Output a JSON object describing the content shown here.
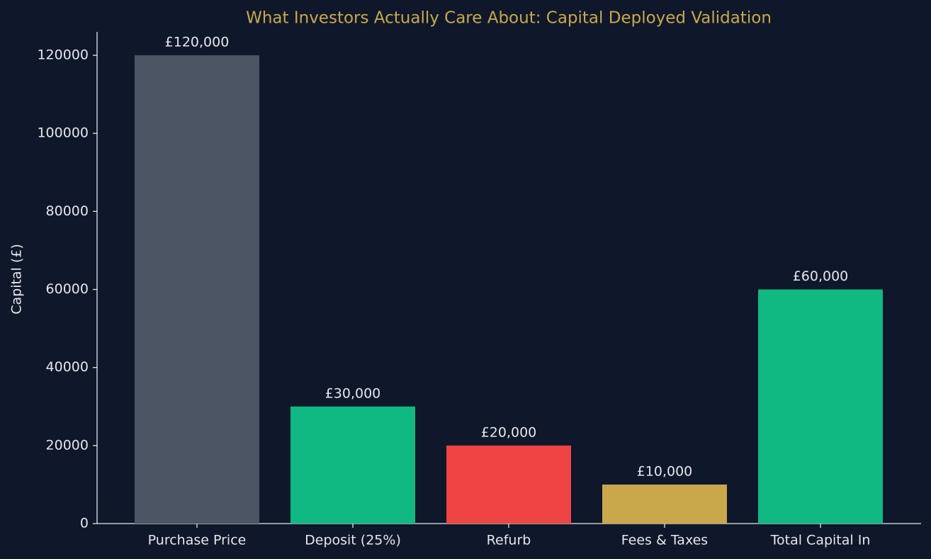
{
  "chart_data": {
    "type": "bar",
    "title": "What Investors Actually Care About: Capital Deployed Validation",
    "y_label": "Capital (£)",
    "categories": [
      "Purchase Price",
      "Deposit (25%)",
      "Refurb",
      "Fees & Taxes",
      "Total Capital In"
    ],
    "values": [
      120000,
      30000,
      20000,
      10000,
      60000
    ],
    "value_labels": [
      "£120,000",
      "£30,000",
      "£20,000",
      "£10,000",
      "£60,000"
    ],
    "colors": [
      "#4b5563",
      "#10b981",
      "#ef4444",
      "#c9a84c",
      "#10b981"
    ],
    "ylim": [
      0,
      126000
    ],
    "yticks": [
      0,
      20000,
      40000,
      60000,
      80000,
      100000,
      120000
    ],
    "grid": false
  }
}
